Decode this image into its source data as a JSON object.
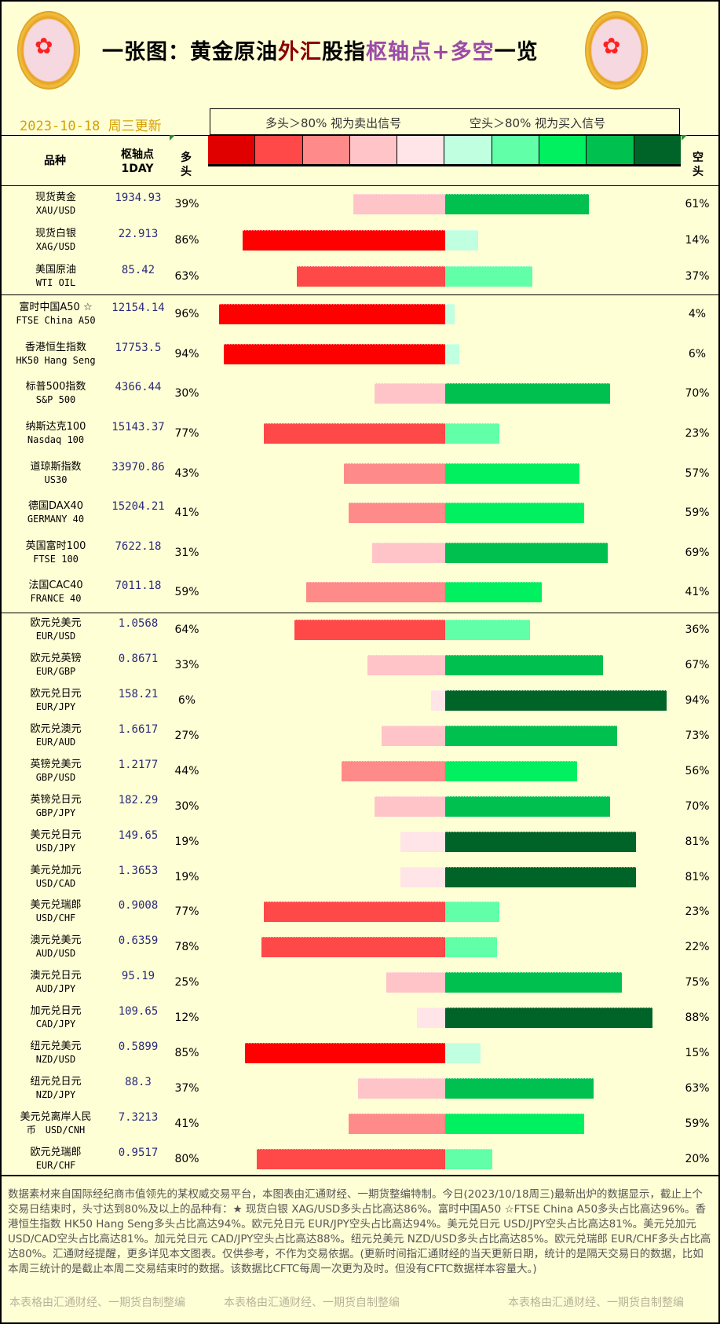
{
  "title": {
    "part1": "一张图：黄金原油",
    "part2": "外汇",
    "part3": "股指",
    "part4": "枢轴点+多空",
    "part5": "一览"
  },
  "date": "2023-10-18 周三更新",
  "legend": {
    "long_text": "多头＞80% 视为卖出信号",
    "short_text": "空头＞80% 视为买入信号"
  },
  "colors": {
    "long": [
      "#ff0000",
      "#ff4848",
      "#ff8a8a",
      "#ffc4c8",
      "#ffe4e8"
    ],
    "short": [
      "#c0ffe0",
      "#60ffa8",
      "#00f060",
      "#00c050",
      "#006428"
    ],
    "swatches": [
      "#e00000",
      "#ff4848",
      "#ff8a8a",
      "#ffc4c8",
      "#ffe4e8",
      "#c0ffe0",
      "#60ffa8",
      "#00f060",
      "#00c050",
      "#006428"
    ]
  },
  "headers": {
    "name": "品种",
    "pivot1": "枢轴点",
    "pivot2": "1DAY",
    "long": "多头",
    "short": "空头"
  },
  "rows": [
    {
      "cn": "现货黄金",
      "en": "XAU/USD",
      "pivot": "1934.93",
      "long": 39,
      "short": 61,
      "group": 1
    },
    {
      "cn": "现货白银",
      "en": "XAG/USD",
      "pivot": "22.913",
      "long": 86,
      "short": 14,
      "group": 1
    },
    {
      "cn": "美国原油",
      "en": "WTI OIL",
      "pivot": "85.42",
      "long": 63,
      "short": 37,
      "group": 1
    },
    {
      "cn": "富时中国A50 ☆",
      "en": "FTSE China A50",
      "pivot": "12154.14",
      "long": 96,
      "short": 4,
      "group": 2
    },
    {
      "cn": "香港恒生指数",
      "en": "HK50 Hang Seng",
      "pivot": "17753.5",
      "long": 94,
      "short": 6,
      "group": 2
    },
    {
      "cn": "标普500指数",
      "en": "S&P 500",
      "pivot": "4366.44",
      "long": 30,
      "short": 70,
      "group": 2
    },
    {
      "cn": "纳斯达克100",
      "en": "Nasdaq 100",
      "pivot": "15143.37",
      "long": 77,
      "short": 23,
      "group": 2
    },
    {
      "cn": "道琼斯指数",
      "en": "US30",
      "pivot": "33970.86",
      "long": 43,
      "short": 57,
      "group": 2
    },
    {
      "cn": "德国DAX40",
      "en": "GERMANY 40",
      "pivot": "15204.21",
      "long": 41,
      "short": 59,
      "group": 2
    },
    {
      "cn": "英国富时100",
      "en": "FTSE 100",
      "pivot": "7622.18",
      "long": 31,
      "short": 69,
      "group": 2
    },
    {
      "cn": "法国CAC40",
      "en": "FRANCE 40",
      "pivot": "7011.18",
      "long": 59,
      "short": 41,
      "group": 2
    },
    {
      "cn": "欧元兑美元",
      "en": "EUR/USD",
      "pivot": "1.0568",
      "long": 64,
      "short": 36,
      "group": 3
    },
    {
      "cn": "欧元兑英镑",
      "en": "EUR/GBP",
      "pivot": "0.8671",
      "long": 33,
      "short": 67,
      "group": 3
    },
    {
      "cn": "欧元兑日元",
      "en": "EUR/JPY",
      "pivot": "158.21",
      "long": 6,
      "short": 94,
      "group": 3
    },
    {
      "cn": "欧元兑澳元",
      "en": "EUR/AUD",
      "pivot": "1.6617",
      "long": 27,
      "short": 73,
      "group": 3
    },
    {
      "cn": "英镑兑美元",
      "en": "GBP/USD",
      "pivot": "1.2177",
      "long": 44,
      "short": 56,
      "group": 3
    },
    {
      "cn": "英镑兑日元",
      "en": "GBP/JPY",
      "pivot": "182.29",
      "long": 30,
      "short": 70,
      "group": 3
    },
    {
      "cn": "美元兑日元",
      "en": "USD/JPY",
      "pivot": "149.65",
      "long": 19,
      "short": 81,
      "group": 3
    },
    {
      "cn": "美元兑加元",
      "en": "USD/CAD",
      "pivot": "1.3653",
      "long": 19,
      "short": 81,
      "group": 3
    },
    {
      "cn": "美元兑瑞郎",
      "en": "USD/CHF",
      "pivot": "0.9008",
      "long": 77,
      "short": 23,
      "group": 3
    },
    {
      "cn": "澳元兑美元",
      "en": "AUD/USD",
      "pivot": "0.6359",
      "long": 78,
      "short": 22,
      "group": 3
    },
    {
      "cn": "澳元兑日元",
      "en": "AUD/JPY",
      "pivot": "95.19",
      "long": 25,
      "short": 75,
      "group": 3
    },
    {
      "cn": "加元兑日元",
      "en": "CAD/JPY",
      "pivot": "109.65",
      "long": 12,
      "short": 88,
      "group": 3
    },
    {
      "cn": "纽元兑美元",
      "en": "NZD/USD",
      "pivot": "0.5899",
      "long": 85,
      "short": 15,
      "group": 3
    },
    {
      "cn": "纽元兑日元",
      "en": "NZD/JPY",
      "pivot": "88.3",
      "long": 37,
      "short": 63,
      "group": 3
    },
    {
      "cn": "美元兑离岸人民",
      "en": "币　USD/CNH",
      "pivot": "7.3213",
      "long": 41,
      "short": 59,
      "group": 3
    },
    {
      "cn": "欧元兑瑞郎",
      "en": "EUR/CHF",
      "pivot": "0.9517",
      "long": 80,
      "short": 20,
      "group": 3
    }
  ],
  "footer": {
    "text": "数据素材来自国际经纪商市值领先的某权威交易平台，本图表由汇通财经、一期货整编特制。今日(2023/10/18周三)最新出炉的数据显示，截止上个交易日结束时，头寸达到80%及以上的品种有：★ 现货白银 XAG/USD多头占比高达86%。富时中国A50 ☆FTSE China A50多头占比高达96%。香港恒生指数 HK50 Hang Seng多头占比高达94%。欧元兑日元 EUR/JPY空头占比高达94%。美元兑日元 USD/JPY空头占比高达81%。美元兑加元 USD/CAD空头占比高达81%。加元兑日元 CAD/JPY空头占比高达88%。纽元兑美元 NZD/USD多头占比高达85%。欧元兑瑞郎 EUR/CHF多头占比高达80%。汇通财经提醒，更多详见本文图表。仅供参考，不作为交易依据。(更新时间指汇通财经的当天更新日期，统计的是隔天交易日的数据，比如本周三统计的是截止本周二交易结束时的数据。该数据比CFTC每周一次更为及时。但没有CFTC数据样本容量大。)",
    "credit": "本表格由汇通财经、一期货自制整编"
  }
}
